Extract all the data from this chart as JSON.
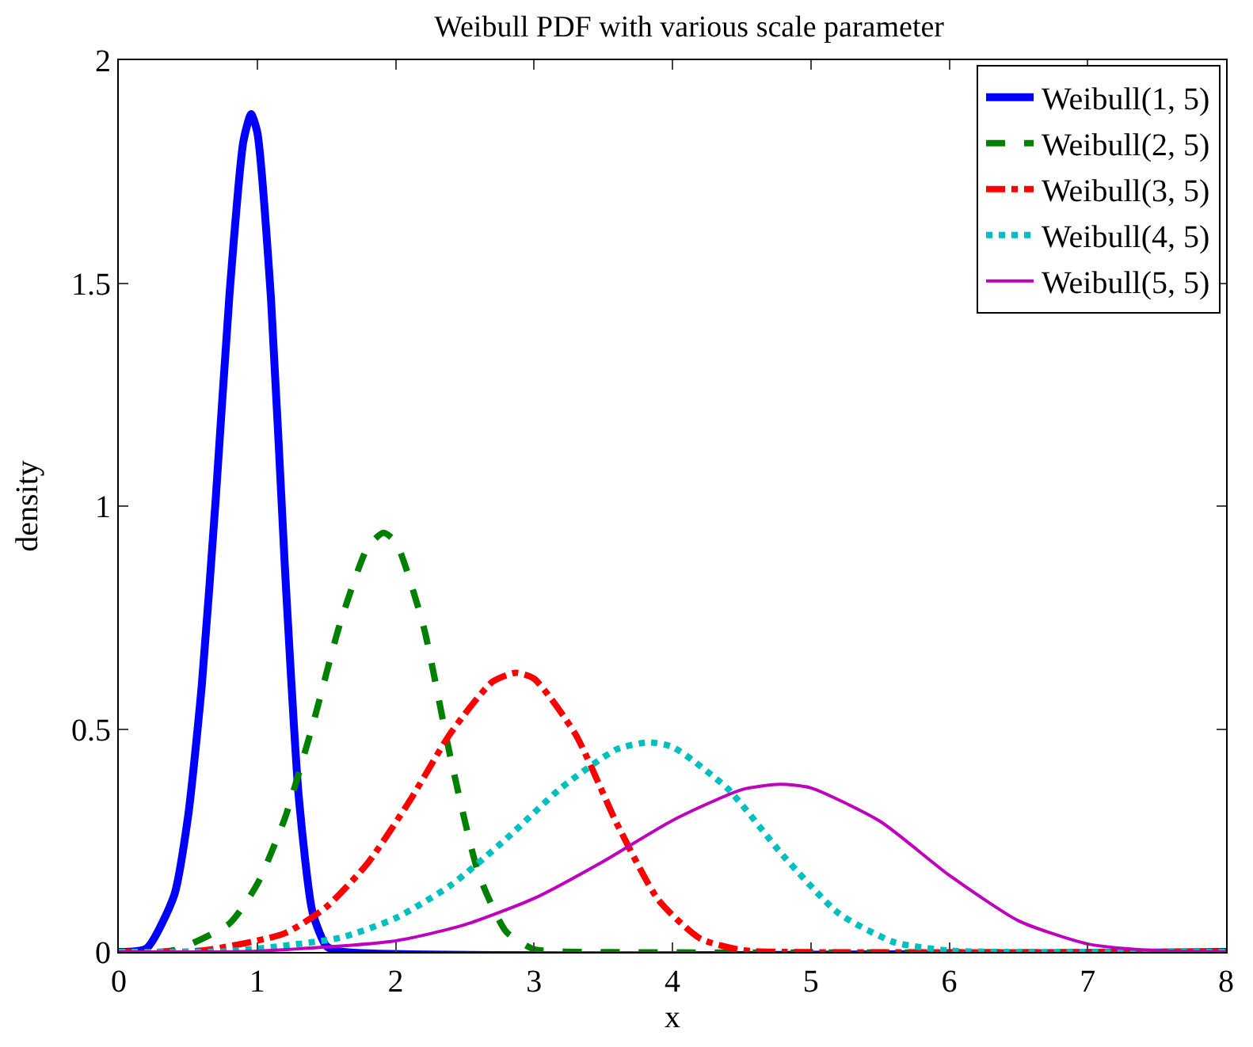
{
  "chart_data": {
    "type": "line",
    "title": "Weibull PDF with various scale parameter",
    "xlabel": "x",
    "ylabel": "density",
    "xlim": [
      0,
      8
    ],
    "ylim": [
      0,
      2
    ],
    "xticks": [
      0,
      1,
      2,
      3,
      4,
      5,
      6,
      7,
      8
    ],
    "yticks": [
      0,
      0.5,
      1,
      1.5,
      2
    ],
    "legend": "top right",
    "marker": "none",
    "series": [
      {
        "name": "Weibull(1, 5)",
        "color": "#0000ff",
        "line_style": "solid",
        "x": [
          0,
          0.2,
          0.4,
          0.5,
          0.6,
          0.7,
          0.8,
          0.9,
          0.956,
          1.0,
          1.1,
          1.2,
          1.3,
          1.4,
          1.5,
          1.6,
          8
        ],
        "values": [
          0,
          0.008,
          0.127,
          0.303,
          0.6,
          1.015,
          1.476,
          1.818,
          1.879,
          1.839,
          1.463,
          0.862,
          0.349,
          0.089,
          0.013,
          0.001,
          0
        ]
      },
      {
        "name": "Weibull(2, 5)",
        "color": "#008000",
        "line_style": "dashed",
        "x": [
          0,
          0.4,
          0.8,
          1,
          1.2,
          1.4,
          1.6,
          1.8,
          1.912,
          2,
          2.2,
          2.4,
          2.6,
          2.8,
          3,
          3.2,
          8
        ],
        "values": [
          0,
          0.004,
          0.064,
          0.152,
          0.3,
          0.508,
          0.738,
          0.909,
          0.94,
          0.92,
          0.732,
          0.431,
          0.175,
          0.045,
          0.006,
          0.001,
          0
        ]
      },
      {
        "name": "Weibull(3, 5)",
        "color": "#ff0000",
        "line_style": "dashdot",
        "x": [
          0,
          0.6,
          1.2,
          1.5,
          1.8,
          2.1,
          2.4,
          2.7,
          2.868,
          3,
          3.3,
          3.6,
          3.9,
          4.2,
          4.5,
          4.8,
          8
        ],
        "values": [
          0,
          0.003,
          0.042,
          0.101,
          0.2,
          0.338,
          0.492,
          0.606,
          0.626,
          0.613,
          0.488,
          0.287,
          0.116,
          0.03,
          0.004,
          0,
          0
        ]
      },
      {
        "name": "Weibull(4, 5)",
        "color": "#00bfbf",
        "line_style": "dotted",
        "x": [
          0,
          0.8,
          1.6,
          2,
          2.4,
          2.8,
          3.2,
          3.6,
          3.824,
          4,
          4.4,
          4.8,
          5.2,
          5.6,
          6,
          6.4,
          8
        ],
        "values": [
          0,
          0.002,
          0.032,
          0.076,
          0.15,
          0.254,
          0.369,
          0.455,
          0.47,
          0.46,
          0.366,
          0.216,
          0.087,
          0.022,
          0.003,
          0,
          0
        ]
      },
      {
        "name": "Weibull(5, 5)",
        "color": "#bf00bf",
        "line_style": "solid",
        "x": [
          0,
          1,
          2,
          2.5,
          3,
          3.5,
          4,
          4.5,
          4.78,
          5,
          5.5,
          6,
          6.5,
          7,
          7.5,
          8
        ],
        "values": [
          0,
          0.002,
          0.025,
          0.061,
          0.12,
          0.203,
          0.295,
          0.364,
          0.376,
          0.368,
          0.293,
          0.172,
          0.07,
          0.018,
          0.003,
          0
        ]
      }
    ]
  }
}
